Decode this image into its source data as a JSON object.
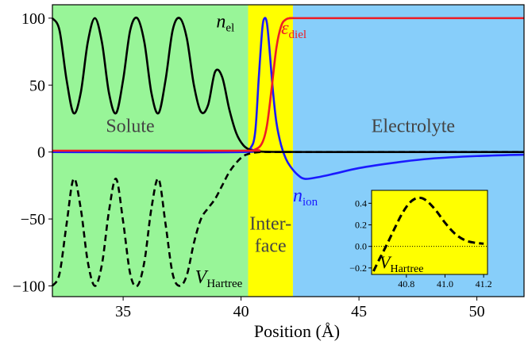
{
  "chart_data": {
    "type": "line",
    "xlabel": "Position (Å)",
    "ylabel": "",
    "xlim": [
      32,
      52
    ],
    "ylim": [
      -108,
      110
    ],
    "x_ticks": [
      35,
      40,
      45,
      50
    ],
    "y_ticks": [
      -100,
      -50,
      0,
      50,
      100
    ],
    "regions": [
      {
        "label": "Solute",
        "x_range": [
          32,
          40.3
        ],
        "color": "#98f598"
      },
      {
        "label": "Inter-\nface",
        "label_lines": [
          "Inter-",
          "face"
        ],
        "x_range": [
          40.3,
          42.2
        ],
        "color": "#ffff00"
      },
      {
        "label": "Electrolyte",
        "x_range": [
          42.2,
          52
        ],
        "color": "#87cefa"
      }
    ],
    "series": [
      {
        "name": "n_el",
        "label_main": "n",
        "label_sub": "el",
        "color": "#000000",
        "style": "solid",
        "x": [
          32.0,
          32.3,
          32.6,
          32.9,
          33.2,
          33.5,
          33.8,
          34.1,
          34.4,
          34.7,
          35.0,
          35.3,
          35.6,
          35.9,
          36.2,
          36.5,
          36.8,
          37.1,
          37.4,
          37.7,
          38.0,
          38.3,
          38.6,
          38.9,
          39.2,
          39.5,
          39.8,
          40.1,
          40.4,
          40.7,
          41.0,
          41.5,
          42.0,
          44.0,
          48.0,
          52.0
        ],
        "y": [
          100,
          91,
          54,
          29,
          44,
          82,
          100,
          82,
          44,
          29,
          54,
          91,
          100,
          82,
          44,
          29,
          54,
          91,
          100,
          85,
          50,
          30,
          35,
          60,
          56,
          32,
          14,
          5,
          1.5,
          0.5,
          0.2,
          0.1,
          0.05,
          0,
          0,
          0
        ]
      },
      {
        "name": "ε_diel",
        "label_main": "ε",
        "label_sub": "diel",
        "color": "#ee1c25",
        "style": "solid",
        "x": [
          32.0,
          40.0,
          40.6,
          40.9,
          41.1,
          41.3,
          41.5,
          41.7,
          41.9,
          42.2,
          43.0,
          52.0
        ],
        "y": [
          1,
          1,
          2,
          7,
          20,
          48,
          78,
          94,
          99,
          100,
          100,
          100
        ]
      },
      {
        "name": "n_ion",
        "label_main": "n",
        "label_sub": "ion",
        "color": "#1a1aff",
        "style": "solid",
        "x": [
          32.0,
          40.0,
          40.4,
          40.6,
          40.75,
          40.9,
          41.0,
          41.1,
          41.2,
          41.35,
          41.5,
          41.7,
          41.9,
          42.1,
          42.4,
          42.7,
          43.2,
          44.0,
          45.0,
          46.5,
          48.0,
          50.0,
          52.0
        ],
        "y": [
          0,
          0,
          3,
          15,
          55,
          92,
          100,
          96,
          78,
          46,
          22,
          5,
          -5,
          -11,
          -17,
          -20,
          -19,
          -16,
          -12,
          -8,
          -5,
          -3,
          -2
        ]
      },
      {
        "name": "V_Hartree",
        "label_main": "V",
        "label_sub": "Hartree",
        "color": "#000000",
        "style": "dashed",
        "x": [
          32.0,
          32.3,
          32.6,
          32.9,
          33.2,
          33.5,
          33.8,
          34.1,
          34.4,
          34.7,
          35.0,
          35.3,
          35.6,
          35.9,
          36.2,
          36.5,
          36.8,
          37.1,
          37.4,
          37.7,
          38.0,
          38.3,
          38.6,
          38.9,
          39.2,
          39.5,
          39.8,
          40.1,
          40.4,
          40.8,
          41.2,
          42.0,
          44.0,
          48.0,
          52.0
        ],
        "y": [
          -100,
          -91,
          -54,
          -20,
          -42,
          -82,
          -100,
          -84,
          -44,
          -20,
          -52,
          -91,
          -100,
          -82,
          -42,
          -20,
          -54,
          -91,
          -100,
          -92,
          -68,
          -50,
          -42,
          -35,
          -25,
          -15,
          -8,
          -3,
          -1,
          0,
          0,
          0,
          0,
          0,
          0
        ]
      }
    ],
    "inset": {
      "xlim": [
        40.62,
        41.22
      ],
      "ylim": [
        -0.26,
        0.52
      ],
      "x_ticks": [
        40.8,
        41.0,
        41.2
      ],
      "x_tick_labels": [
        "40.8",
        "41.0",
        "41.2"
      ],
      "y_ticks": [
        -0.2,
        0.0,
        0.2,
        0.4
      ],
      "y_tick_labels": [
        "−0.2",
        "0.0",
        "0.2",
        "0.4"
      ],
      "reference_y": 0.0,
      "series": {
        "name": "V_Hartree",
        "label_main": "V",
        "label_sub": "Hartree",
        "color": "#000000",
        "style": "dashed",
        "x": [
          40.63,
          40.66,
          40.7,
          40.74,
          40.78,
          40.82,
          40.86,
          40.9,
          40.95,
          41.0,
          41.05,
          41.1,
          41.15,
          41.2
        ],
        "y": [
          -0.23,
          -0.12,
          0.02,
          0.17,
          0.31,
          0.41,
          0.45,
          0.43,
          0.34,
          0.22,
          0.12,
          0.06,
          0.035,
          0.025
        ]
      }
    }
  }
}
